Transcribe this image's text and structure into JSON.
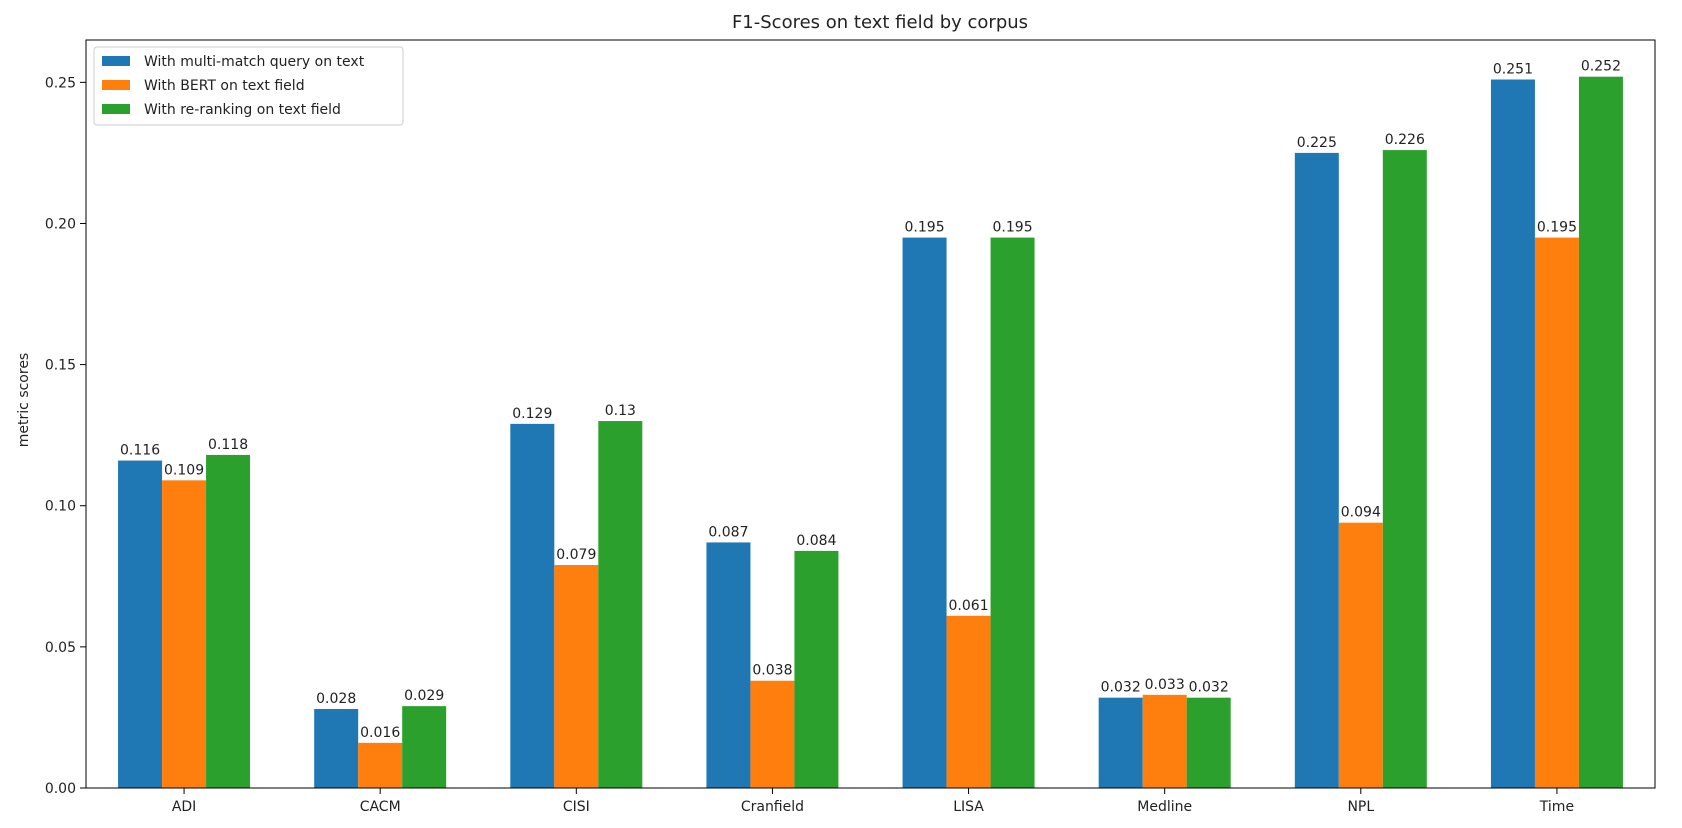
{
  "chart_data": {
    "type": "bar",
    "title": "F1-Scores on text field by corpus",
    "xlabel": "",
    "ylabel": "metric scores",
    "ylim": [
      0,
      0.265
    ],
    "yticks": [
      "0.00",
      "0.05",
      "0.10",
      "0.15",
      "0.20",
      "0.25"
    ],
    "ytick_values": [
      0,
      0.05,
      0.1,
      0.15,
      0.2,
      0.25
    ],
    "categories": [
      "ADI",
      "CACM",
      "CISI",
      "Cranfield",
      "LISA",
      "Medline",
      "NPL",
      "Time"
    ],
    "legend_position": "top-left",
    "grid": false,
    "series": [
      {
        "name": "With multi-match query on text",
        "color": "#1f77b4",
        "values": [
          0.116,
          0.028,
          0.129,
          0.087,
          0.195,
          0.032,
          0.225,
          0.251
        ],
        "labels": [
          "0.116",
          "0.028",
          "0.129",
          "0.087",
          "0.195",
          "0.032",
          "0.225",
          "0.251"
        ]
      },
      {
        "name": "With BERT on text field",
        "color": "#ff7f0e",
        "values": [
          0.109,
          0.016,
          0.079,
          0.038,
          0.061,
          0.033,
          0.094,
          0.195
        ],
        "labels": [
          "0.109",
          "0.016",
          "0.079",
          "0.038",
          "0.061",
          "0.033",
          "0.094",
          "0.195"
        ]
      },
      {
        "name": "With re-ranking on text field",
        "color": "#2ca02c",
        "values": [
          0.118,
          0.029,
          0.13,
          0.084,
          0.195,
          0.032,
          0.226,
          0.252
        ],
        "labels": [
          "0.118",
          "0.029",
          "0.13",
          "0.084",
          "0.195",
          "0.032",
          "0.226",
          "0.252"
        ]
      }
    ]
  }
}
